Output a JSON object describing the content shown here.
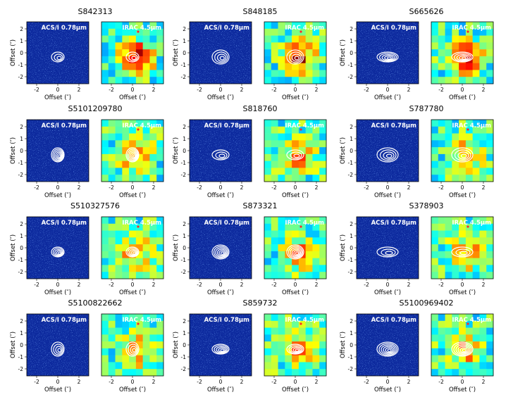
{
  "figure": {
    "axis_label_x": "Offset (″)",
    "axis_label_y": "Offset (″)",
    "acs_label": "ACS/I 0.78μm",
    "irac_label": "IRAC 4.5μm",
    "xticks": [
      "-2",
      "0",
      "2"
    ],
    "yticks": [
      "2",
      "1",
      "0",
      "-1",
      "-2"
    ],
    "colors": {
      "acs_background": "#0d2a9e",
      "contour": "#ffffff",
      "marker": "#ff2a2a"
    }
  },
  "sources": [
    {
      "id": "S842313"
    },
    {
      "id": "S848185"
    },
    {
      "id": "S665626"
    },
    {
      "id": "S5101209780"
    },
    {
      "id": "S818760"
    },
    {
      "id": "S787780"
    },
    {
      "id": "S510327576"
    },
    {
      "id": "S873321"
    },
    {
      "id": "S378903"
    },
    {
      "id": "S5100822662"
    },
    {
      "id": "S859732"
    },
    {
      "id": "S5100969402"
    }
  ]
}
